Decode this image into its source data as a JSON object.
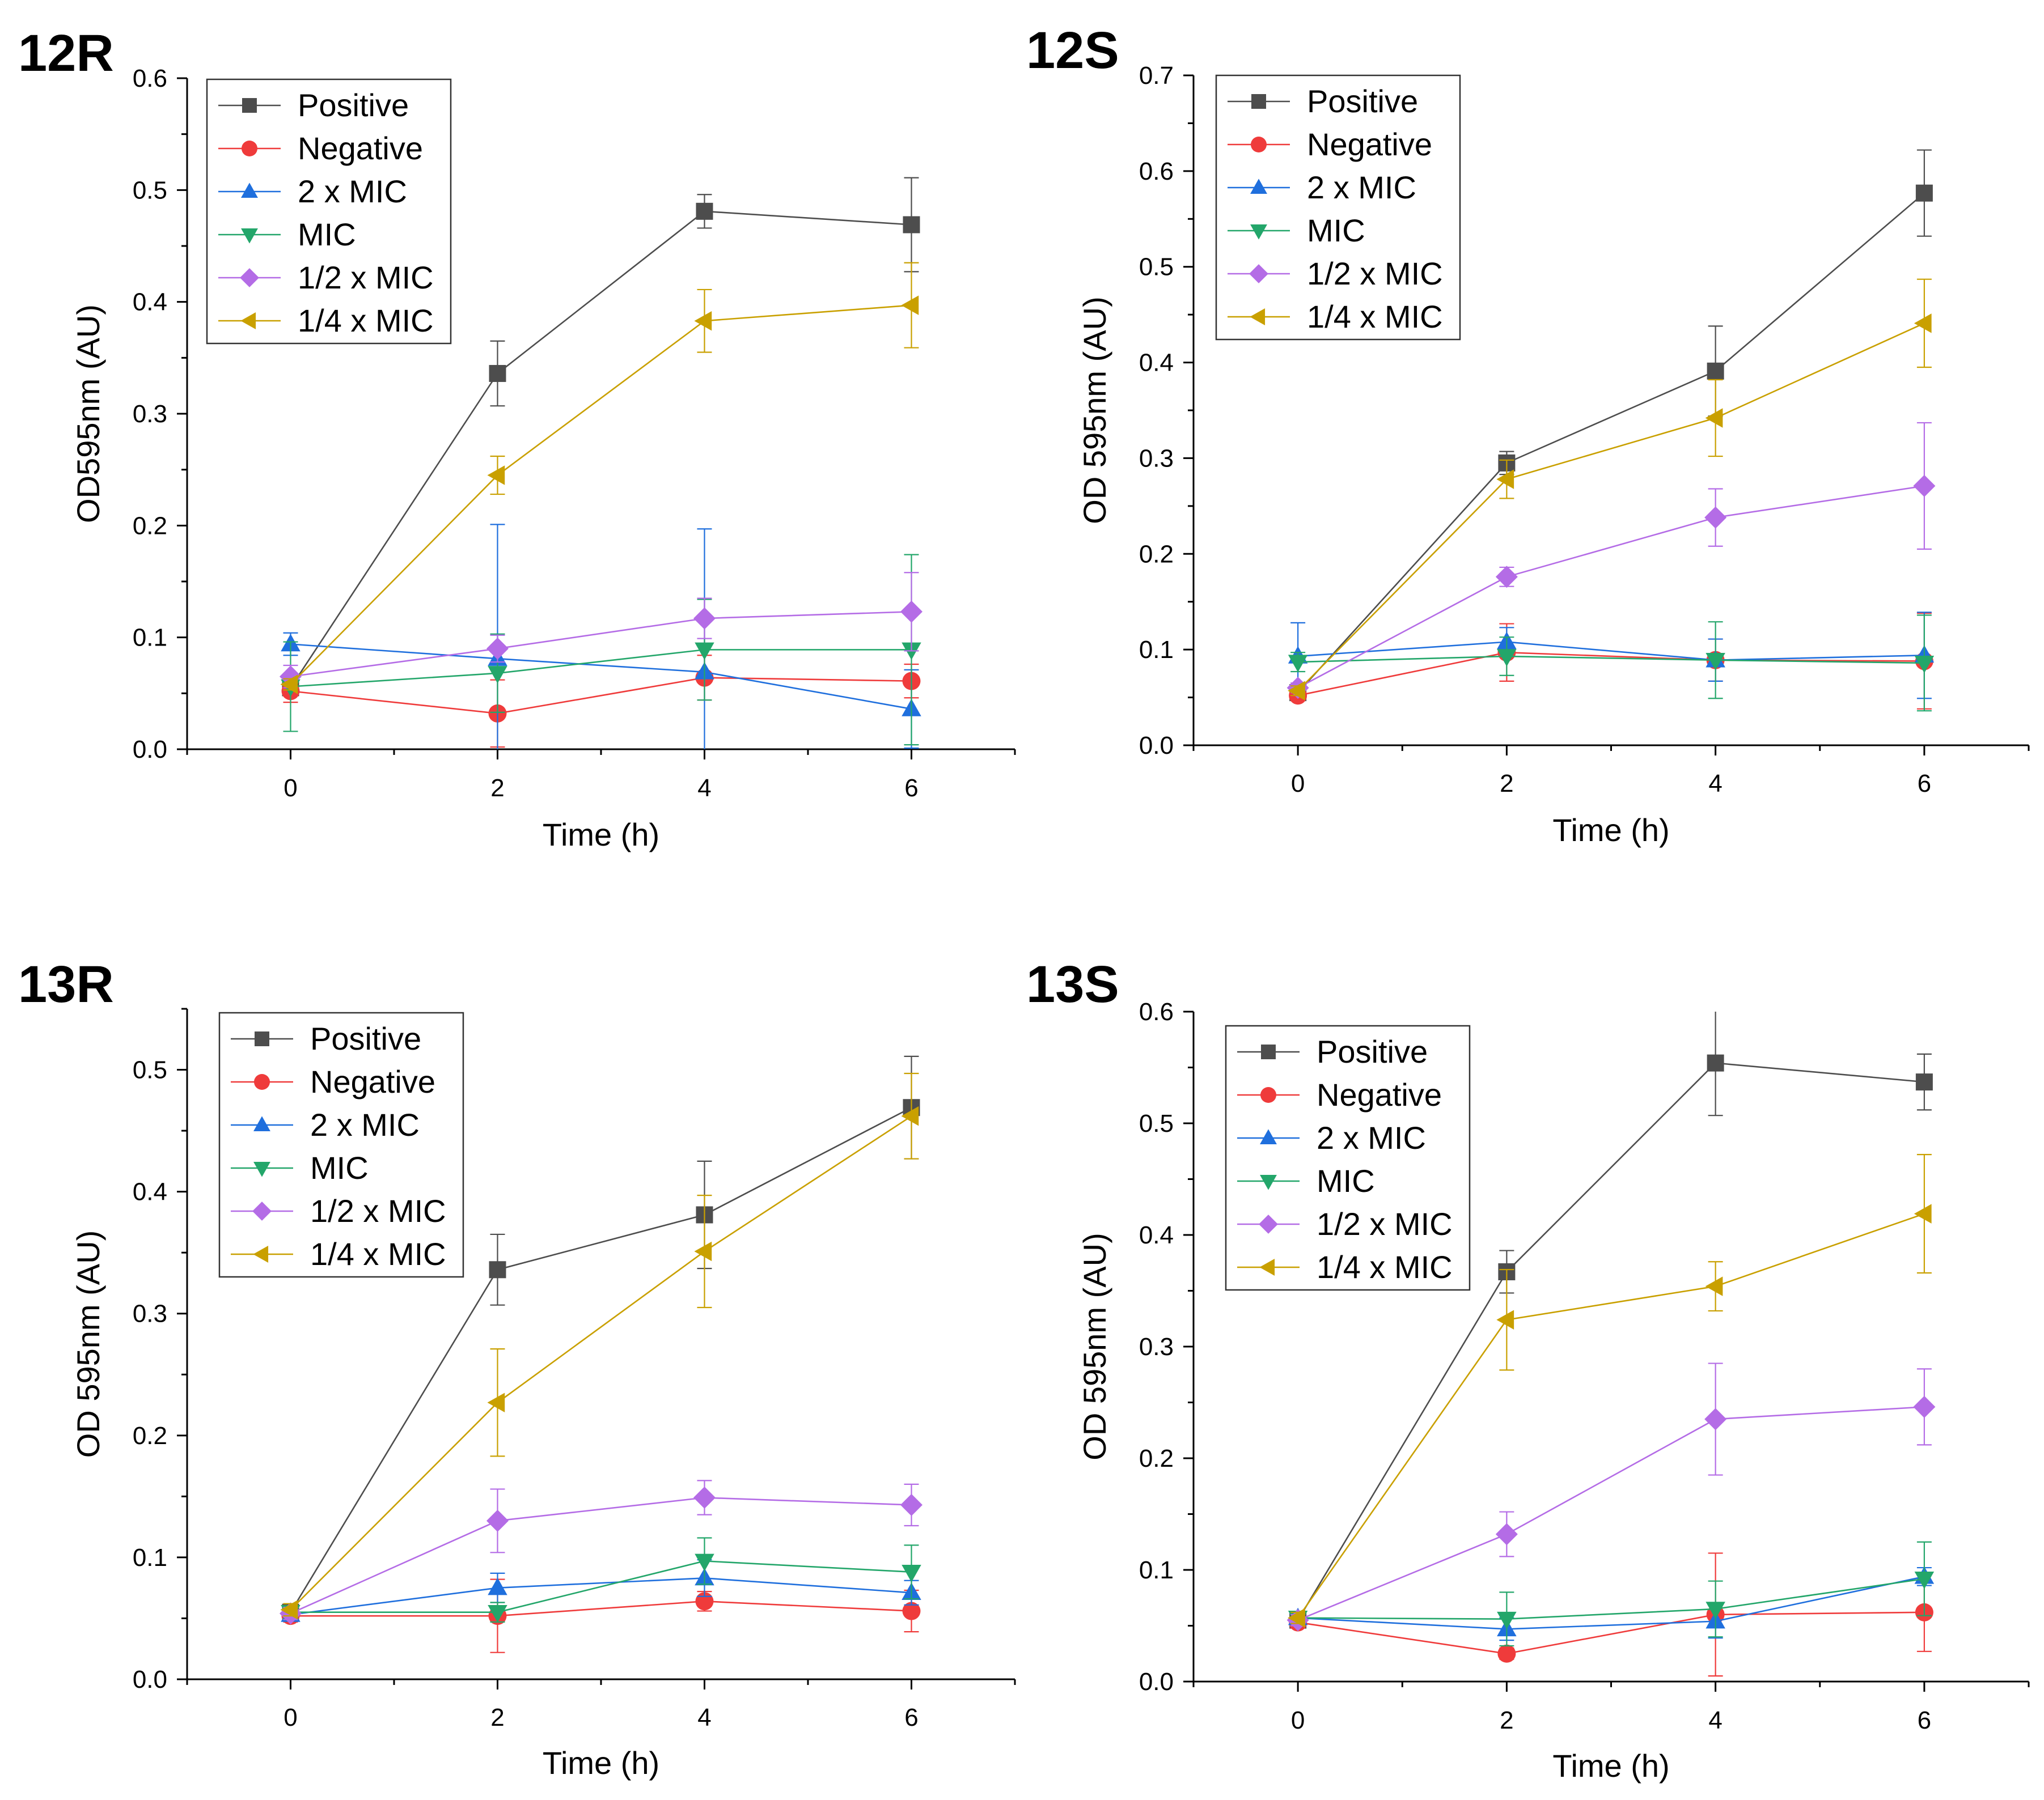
{
  "chart_data": [
    {
      "type": "line",
      "panel_label": "12R",
      "xlabel": "Time (h)",
      "ylabel": "OD595nm (AU)",
      "x": [
        0,
        2,
        4,
        6
      ],
      "xticks": [
        "0",
        "2",
        "4",
        "6"
      ],
      "xlim": [
        -1,
        7
      ],
      "ylim": [
        0,
        0.6
      ],
      "yticks": [
        "0.0",
        "0.1",
        "0.2",
        "0.3",
        "0.4",
        "0.5",
        "0.6"
      ],
      "legend_position": "top-left",
      "series": [
        {
          "name": "Positive",
          "marker": "square",
          "color": "#4d4d4d",
          "values": [
            0.055,
            0.336,
            0.481,
            0.469
          ],
          "errors": [
            0.005,
            0.029,
            0.015,
            0.042
          ]
        },
        {
          "name": "Negative",
          "marker": "circle",
          "color": "#ef3b3b",
          "values": [
            0.052,
            0.032,
            0.064,
            0.061
          ],
          "errors": [
            0.01,
            0.03,
            0.02,
            0.015
          ]
        },
        {
          "name": "2 x MIC",
          "marker": "triangle-up",
          "color": "#1f6fdd",
          "values": [
            0.094,
            0.081,
            0.069,
            0.036
          ],
          "errors": [
            0.01,
            0.12,
            0.128,
            0.035
          ]
        },
        {
          "name": "MIC",
          "marker": "triangle-down",
          "color": "#23a66a",
          "values": [
            0.056,
            0.068,
            0.089,
            0.089
          ],
          "errors": [
            0.04,
            0.035,
            0.045,
            0.085
          ]
        },
        {
          "name": "1/2 x MIC",
          "marker": "diamond",
          "color": "#b46ce6",
          "values": [
            0.065,
            0.09,
            0.117,
            0.123
          ],
          "errors": [
            0.01,
            0.012,
            0.018,
            0.035
          ]
        },
        {
          "name": "1/4 x MIC",
          "marker": "triangle-left",
          "color": "#c9a000",
          "values": [
            0.058,
            0.245,
            0.383,
            0.397
          ],
          "errors": [
            0.005,
            0.017,
            0.028,
            0.038
          ]
        }
      ]
    },
    {
      "type": "line",
      "panel_label": "12S",
      "xlabel": "Time (h)",
      "ylabel": "OD 595nm (AU)",
      "x": [
        0,
        2,
        4,
        6
      ],
      "xticks": [
        "0",
        "2",
        "4",
        "6"
      ],
      "xlim": [
        -1,
        7
      ],
      "ylim": [
        0,
        0.7
      ],
      "yticks": [
        "0.0",
        "0.1",
        "0.2",
        "0.3",
        "0.4",
        "0.5",
        "0.6",
        "0.7"
      ],
      "legend_position": "top-left",
      "series": [
        {
          "name": "Positive",
          "marker": "square",
          "color": "#4d4d4d",
          "values": [
            0.055,
            0.295,
            0.391,
            0.577
          ],
          "errors": [
            0.005,
            0.012,
            0.047,
            0.045
          ]
        },
        {
          "name": "Negative",
          "marker": "circle",
          "color": "#ef3b3b",
          "values": [
            0.052,
            0.097,
            0.089,
            0.088
          ],
          "errors": [
            0.005,
            0.03,
            0.022,
            0.05
          ]
        },
        {
          "name": "2 x MIC",
          "marker": "triangle-up",
          "color": "#1f6fdd",
          "values": [
            0.093,
            0.108,
            0.089,
            0.094
          ],
          "errors": [
            0.035,
            0.015,
            0.022,
            0.045
          ]
        },
        {
          "name": "MIC",
          "marker": "triangle-down",
          "color": "#23a66a",
          "values": [
            0.087,
            0.093,
            0.089,
            0.086
          ],
          "errors": [
            0.01,
            0.02,
            0.04,
            0.05
          ]
        },
        {
          "name": "1/2 x MIC",
          "marker": "diamond",
          "color": "#b46ce6",
          "values": [
            0.06,
            0.176,
            0.238,
            0.271
          ],
          "errors": [
            0.005,
            0.01,
            0.03,
            0.066
          ]
        },
        {
          "name": "1/4 x MIC",
          "marker": "triangle-left",
          "color": "#c9a000",
          "values": [
            0.057,
            0.278,
            0.342,
            0.441
          ],
          "errors": [
            0.005,
            0.02,
            0.04,
            0.046
          ]
        }
      ]
    },
    {
      "type": "line",
      "panel_label": "13R",
      "xlabel": "Time (h)",
      "ylabel": "OD 595nm (AU)",
      "x": [
        0,
        2,
        4,
        6
      ],
      "xticks": [
        "0",
        "2",
        "4",
        "6"
      ],
      "xlim": [
        -1,
        7
      ],
      "ylim": [
        0,
        0.55
      ],
      "yticks": [
        "0.0",
        "0.1",
        "0.2",
        "0.3",
        "0.4",
        "0.5"
      ],
      "legend_position": "top-left",
      "series": [
        {
          "name": "Positive",
          "marker": "square",
          "color": "#4d4d4d",
          "values": [
            0.055,
            0.336,
            0.381,
            0.469
          ],
          "errors": [
            0.005,
            0.029,
            0.044,
            0.042
          ]
        },
        {
          "name": "Negative",
          "marker": "circle",
          "color": "#ef3b3b",
          "values": [
            0.052,
            0.052,
            0.064,
            0.056
          ],
          "errors": [
            0.005,
            0.03,
            0.008,
            0.017
          ]
        },
        {
          "name": "2 x MIC",
          "marker": "triangle-up",
          "color": "#1f6fdd",
          "values": [
            0.053,
            0.075,
            0.083,
            0.071
          ],
          "errors": [
            0.005,
            0.012,
            0.015,
            0.01
          ]
        },
        {
          "name": "MIC",
          "marker": "triangle-down",
          "color": "#23a66a",
          "values": [
            0.055,
            0.055,
            0.097,
            0.088
          ],
          "errors": [
            0.005,
            0.008,
            0.019,
            0.022
          ]
        },
        {
          "name": "1/2 x MIC",
          "marker": "diamond",
          "color": "#b46ce6",
          "values": [
            0.054,
            0.13,
            0.149,
            0.143
          ],
          "errors": [
            0.005,
            0.026,
            0.014,
            0.017
          ]
        },
        {
          "name": "1/4 x MIC",
          "marker": "triangle-left",
          "color": "#c9a000",
          "values": [
            0.057,
            0.227,
            0.351,
            0.462
          ],
          "errors": [
            0.005,
            0.044,
            0.046,
            0.035
          ]
        }
      ]
    },
    {
      "type": "line",
      "panel_label": "13S",
      "xlabel": "Time  (h)",
      "ylabel": "OD 595nm (AU)",
      "x": [
        0,
        2,
        4,
        6
      ],
      "xticks": [
        "0",
        "2",
        "4",
        "6"
      ],
      "xlim": [
        -1,
        7
      ],
      "ylim": [
        0,
        0.6
      ],
      "yticks": [
        "0.0",
        "0.1",
        "0.2",
        "0.3",
        "0.4",
        "0.5",
        "0.6"
      ],
      "legend_position": "top-left",
      "series": [
        {
          "name": "Positive",
          "marker": "square",
          "color": "#4d4d4d",
          "values": [
            0.055,
            0.367,
            0.554,
            0.537
          ],
          "errors": [
            0.005,
            0.019,
            0.047,
            0.025
          ]
        },
        {
          "name": "Negative",
          "marker": "circle",
          "color": "#ef3b3b",
          "values": [
            0.053,
            0.025,
            0.06,
            0.062
          ],
          "errors": [
            0.005,
            0.005,
            0.055,
            0.035
          ]
        },
        {
          "name": "2 x MIC",
          "marker": "triangle-up",
          "color": "#1f6fdd",
          "values": [
            0.057,
            0.047,
            0.054,
            0.094
          ],
          "errors": [
            0.005,
            0.01,
            0.015,
            0.008
          ]
        },
        {
          "name": "MIC",
          "marker": "triangle-down",
          "color": "#23a66a",
          "values": [
            0.057,
            0.056,
            0.065,
            0.092
          ],
          "errors": [
            0.005,
            0.024,
            0.025,
            0.033
          ]
        },
        {
          "name": "1/2 x MIC",
          "marker": "diamond",
          "color": "#b46ce6",
          "values": [
            0.055,
            0.132,
            0.235,
            0.246
          ],
          "errors": [
            0.005,
            0.02,
            0.05,
            0.034
          ]
        },
        {
          "name": "1/4 x MIC",
          "marker": "triangle-left",
          "color": "#c9a000",
          "values": [
            0.057,
            0.324,
            0.354,
            0.419
          ],
          "errors": [
            0.005,
            0.045,
            0.022,
            0.053
          ]
        }
      ]
    }
  ]
}
